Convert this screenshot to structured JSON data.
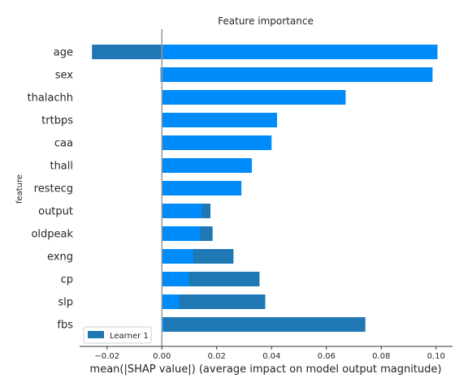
{
  "chart_data": {
    "type": "bar",
    "orientation": "horizontal",
    "title": "Feature importance",
    "xlabel": "mean(|SHAP value|) (average impact on model output magnitude)",
    "ylabel": "feature",
    "xlim": [
      -0.03,
      0.106
    ],
    "xticks": [
      -0.02,
      0.0,
      0.02,
      0.04,
      0.06,
      0.08,
      0.1
    ],
    "xtick_labels": [
      "−0.02",
      "0.00",
      "0.02",
      "0.04",
      "0.06",
      "0.08",
      "0.10"
    ],
    "categories": [
      "age",
      "sex",
      "thalachh",
      "trtbps",
      "caa",
      "thall",
      "restecg",
      "output",
      "oldpeak",
      "exng",
      "cp",
      "slp",
      "fbs"
    ],
    "series": [
      {
        "name": "Learner 1",
        "color": "#1f77b4",
        "values": [
          -0.0255,
          -0.0005,
          0.0,
          0.0,
          0.0,
          0.0,
          0.0,
          0.0177,
          0.0185,
          0.0261,
          0.0356,
          0.0377,
          0.0742
        ]
      },
      {
        "color": "#008bfb",
        "values": [
          0.1005,
          0.0987,
          0.067,
          0.042,
          0.04,
          0.0328,
          0.029,
          0.0145,
          0.014,
          0.0115,
          0.0098,
          0.0063,
          0.0008
        ]
      }
    ],
    "legend": {
      "position": "lower-left"
    },
    "grid": false
  }
}
